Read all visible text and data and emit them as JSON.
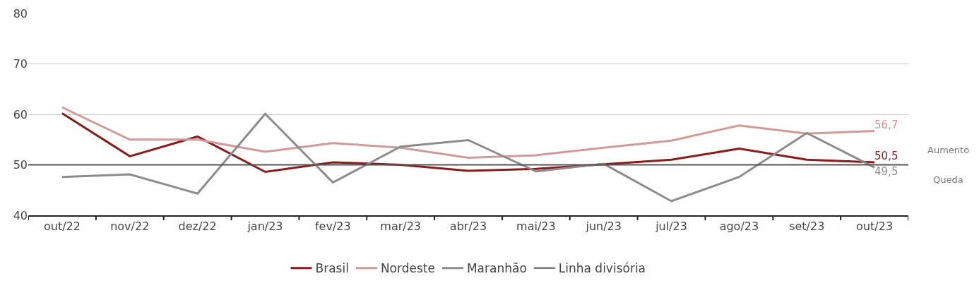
{
  "chart_data": {
    "type": "line",
    "categories": [
      "out/22",
      "nov/22",
      "dez/22",
      "jan/23",
      "fev/23",
      "mar/23",
      "abr/23",
      "mai/23",
      "jun/23",
      "jul/23",
      "ago/23",
      "set/23",
      "out/23"
    ],
    "series": [
      {
        "name": "Brasil",
        "color": "#8b1a1a",
        "values": [
          60.2,
          51.7,
          55.6,
          48.6,
          50.5,
          50.0,
          48.8,
          49.2,
          50.1,
          51.0,
          53.2,
          51.0,
          50.5
        ],
        "value_labels": [
          null,
          null,
          null,
          null,
          null,
          null,
          null,
          null,
          null,
          null,
          null,
          null,
          "50,5"
        ]
      },
      {
        "name": "Nordeste",
        "color": "#d09a9a",
        "values": [
          61.4,
          55.0,
          55.0,
          52.6,
          54.3,
          53.4,
          51.4,
          51.9,
          53.4,
          54.8,
          57.8,
          56.2,
          56.7
        ],
        "value_labels": [
          null,
          null,
          null,
          null,
          null,
          null,
          null,
          null,
          null,
          null,
          null,
          null,
          "56,7"
        ]
      },
      {
        "name": "Maranhão",
        "color": "#8c8c8c",
        "values": [
          47.6,
          48.1,
          44.3,
          60.1,
          46.5,
          53.6,
          54.9,
          48.7,
          50.2,
          42.8,
          47.6,
          56.3,
          49.5
        ],
        "value_labels": [
          null,
          null,
          null,
          null,
          null,
          null,
          null,
          null,
          null,
          null,
          null,
          null,
          "49,5"
        ]
      }
    ],
    "ref_lines": [
      {
        "axis": "y",
        "value": 50,
        "label": "Linha divisória",
        "color": "#555555",
        "line_style": "solid"
      }
    ],
    "annotations": [
      "Aumento",
      "Queda"
    ],
    "ylim": [
      40,
      80
    ],
    "yticks": [
      40,
      50,
      60,
      70,
      80
    ],
    "grid": "y",
    "legend": "bottom",
    "marker": "none",
    "line_style": "solid"
  }
}
